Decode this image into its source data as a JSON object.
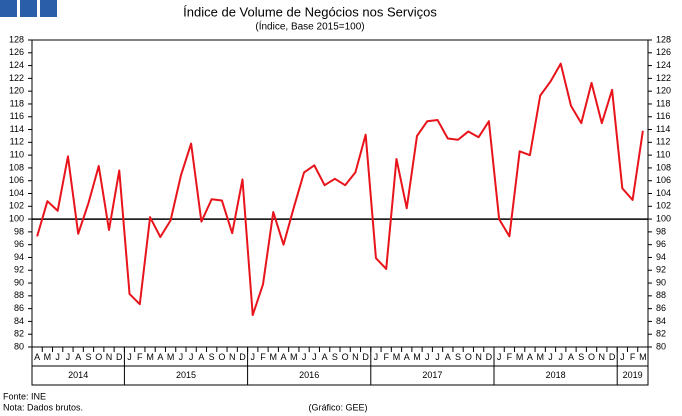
{
  "chart_data": {
    "type": "line",
    "title": "Índice de Volume de Negócios nos Serviços",
    "subtitle": "(Índice, Base 2015=100)",
    "categories": [
      "A",
      "M",
      "J",
      "J",
      "A",
      "S",
      "O",
      "N",
      "D",
      "J",
      "F",
      "M",
      "A",
      "M",
      "J",
      "J",
      "A",
      "S",
      "O",
      "N",
      "D",
      "J",
      "F",
      "M",
      "A",
      "M",
      "J",
      "J",
      "A",
      "S",
      "O",
      "N",
      "D",
      "J",
      "F",
      "M",
      "A",
      "M",
      "J",
      "J",
      "A",
      "S",
      "O",
      "N",
      "D",
      "J",
      "F",
      "M",
      "A",
      "M",
      "J",
      "J",
      "A",
      "S",
      "O",
      "N",
      "D",
      "J",
      "F",
      "M"
    ],
    "years": [
      "2014",
      "2015",
      "2016",
      "2017",
      "2018",
      "2019"
    ],
    "series": [
      {
        "name": "Índice",
        "color": "#e8141b",
        "values": [
          97.3,
          102.8,
          101.3,
          109.8,
          97.7,
          102.5,
          108.3,
          98.3,
          107.6,
          88.3,
          86.7,
          100.3,
          97.2,
          99.8,
          106.8,
          111.8,
          99.6,
          103.1,
          102.9,
          97.8,
          106.2,
          85.0,
          89.8,
          101.1,
          96.0,
          101.8,
          107.3,
          108.4,
          105.3,
          106.3,
          105.3,
          107.3,
          113.2,
          93.9,
          92.2,
          109.4,
          101.7,
          113.0,
          115.3,
          115.5,
          112.6,
          112.4,
          113.7,
          112.8,
          115.3,
          100.0,
          97.3,
          110.6,
          110.0,
          119.3,
          121.5,
          124.3,
          117.7,
          115.0,
          121.3,
          115.0,
          120.2,
          104.8,
          103.0,
          113.8
        ]
      }
    ],
    "ylim": [
      80,
      128
    ],
    "yticks": [
      80,
      82,
      84,
      86,
      88,
      90,
      92,
      94,
      96,
      98,
      100,
      102,
      104,
      106,
      108,
      110,
      112,
      114,
      116,
      118,
      120,
      122,
      124,
      126,
      128
    ],
    "hline": 100,
    "grid": false,
    "source": "Fonte: INE",
    "note": "Nota: Dados brutos.",
    "credit": "(Gráfico: GEE)"
  }
}
